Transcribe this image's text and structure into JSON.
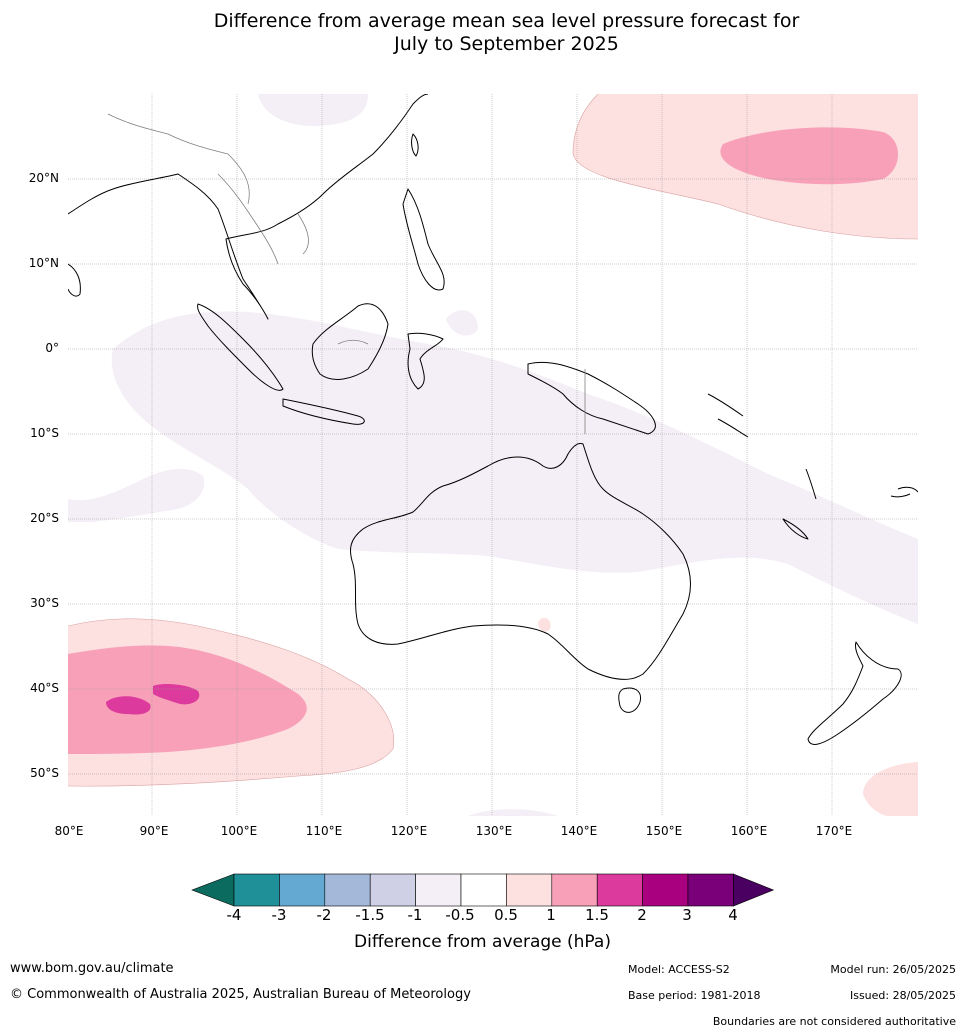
{
  "header": {
    "title_line1": "Difference from average mean sea level pressure forecast for",
    "title_line2": "July to September 2025"
  },
  "map": {
    "lat_labels": [
      "20°N",
      "10°N",
      "0°",
      "10°S",
      "20°S",
      "30°S",
      "40°S",
      "50°S"
    ],
    "lon_labels": [
      "80°E",
      "90°E",
      "100°E",
      "110°E",
      "120°E",
      "130°E",
      "140°E",
      "150°E",
      "160°E",
      "170°E"
    ]
  },
  "legend": {
    "ticks": [
      "-4",
      "-3",
      "-2",
      "-1.5",
      "-1",
      "-0.5",
      "0.5",
      "1",
      "1.5",
      "2",
      "3",
      "4"
    ],
    "title": "Difference from average (hPa)",
    "colors": [
      "#0b6b5e",
      "#1f8f98",
      "#63a9d1",
      "#a4b8da",
      "#cfd0e6",
      "#f4eef6",
      "#ffffff",
      "#fde0e0",
      "#f7a0b8",
      "#dd3a9d",
      "#a8007f",
      "#7a007a",
      "#4a0060"
    ]
  },
  "footer": {
    "website": "www.bom.gov.au/climate",
    "copyright": "© Commonwealth of Australia 2025, Australian Bureau of Meteorology",
    "model": "Model: ACCESS-S2",
    "base_period": "Base period: 1981-2018",
    "model_run": "Model run: 26/05/2025",
    "issued": "Issued: 28/05/2025",
    "boundaries_note": "Boundaries are not considered authoritative"
  }
}
